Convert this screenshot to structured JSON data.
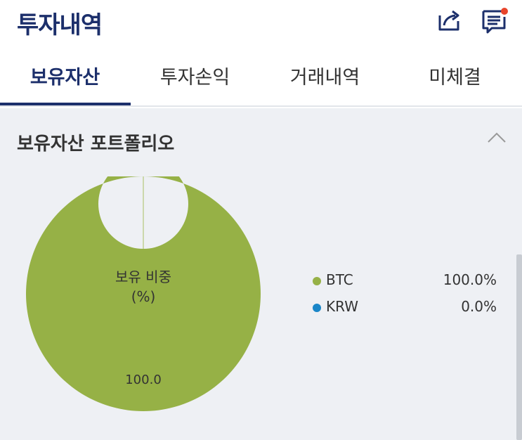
{
  "header": {
    "title": "투자내역",
    "share_icon": "share-icon",
    "notice_icon": "notice-icon",
    "notice_badge_color": "#e8452c"
  },
  "tabs": [
    {
      "label": "보유자산",
      "active": true
    },
    {
      "label": "투자손익",
      "active": false
    },
    {
      "label": "거래내역",
      "active": false
    },
    {
      "label": "미체결",
      "active": false
    }
  ],
  "portfolio": {
    "title": "보유자산 포트폴리오",
    "center_line1": "보유 비중",
    "center_line2": "(%)",
    "slice_label": "100.0",
    "legend": [
      {
        "name": "BTC",
        "value": "100.0%",
        "color": "#96b146"
      },
      {
        "name": "KRW",
        "value": "0.0%",
        "color": "#1a86c8"
      }
    ]
  },
  "chart_data": {
    "type": "pie",
    "categories": [
      "BTC",
      "KRW"
    ],
    "values": [
      100.0,
      0.0
    ],
    "colors": [
      "#96b146",
      "#1a86c8"
    ],
    "title": "",
    "center_label": "보유 비중 (%)"
  },
  "colors": {
    "brand": "#1c2f6b",
    "section_bg": "#eef0f4"
  }
}
